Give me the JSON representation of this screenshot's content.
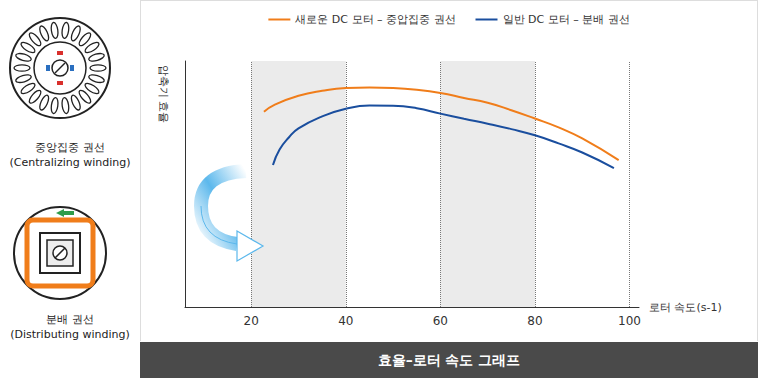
{
  "chart_data": {
    "type": "line",
    "x_label": "로터 속도(s-1)",
    "y_label": "압축기 효율",
    "xlim": [
      6,
      102
    ],
    "xticks": [
      20,
      40,
      60,
      80,
      100
    ],
    "ylim": [
      0,
      100
    ],
    "grid": true,
    "legend": "top",
    "tick_labels": "x",
    "shaded_x_ranges": [
      [
        20,
        40
      ],
      [
        60,
        80
      ]
    ],
    "series": [
      {
        "name": "새로운 DC 모터 – 중압집중 권선",
        "color": "#f07d1a",
        "x": [
          22.7,
          25,
          30,
          35,
          40,
          45,
          50,
          55,
          60,
          65,
          70,
          75,
          80,
          85,
          90,
          97.7
        ],
        "values": [
          79.4,
          82.3,
          85.9,
          87.9,
          89,
          89.2,
          89,
          88.3,
          87,
          85,
          83,
          80,
          76.6,
          73,
          68.5,
          59.7
        ]
      },
      {
        "name": "일반 DC 모터 – 분배 권선",
        "color": "#1a4e9e",
        "x": [
          24.6,
          26,
          28,
          30,
          35,
          40,
          45,
          50,
          55,
          60,
          65,
          70,
          75,
          80,
          85,
          90,
          96.7
        ],
        "values": [
          57.7,
          64,
          69,
          72.6,
          77.5,
          80.6,
          81.9,
          81.8,
          80.8,
          78.6,
          76.5,
          74.5,
          72.3,
          69.8,
          66.5,
          62.8,
          56.5
        ]
      }
    ]
  },
  "caption": "효율–로터 속도 그래프",
  "winding_diagrams": [
    {
      "label": "중앙집중 권선",
      "sublabel": "(Centralizing winding)"
    },
    {
      "label": "분배 권선",
      "sublabel": "(Distributing winding)"
    }
  ]
}
